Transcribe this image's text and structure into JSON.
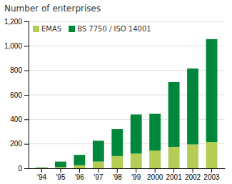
{
  "chart_data": {
    "type": "bar",
    "stacked": true,
    "title": "Number of enterprises",
    "categories": [
      "'94",
      "'95",
      "'96",
      "'97",
      "'98",
      "'99",
      "2000",
      "2001",
      "2002",
      "2003"
    ],
    "series": [
      {
        "name": "EMAS",
        "color": "#b5cc55",
        "values": [
          5,
          10,
          25,
          55,
          100,
          120,
          145,
          175,
          195,
          215
        ]
      },
      {
        "name": "BS 7750 / ISO 14001",
        "color": "#00873c",
        "values": [
          3,
          45,
          85,
          170,
          220,
          320,
          300,
          530,
          620,
          840
        ]
      }
    ],
    "ylim": [
      0,
      1200
    ],
    "yticks": [
      0,
      200,
      400,
      600,
      800,
      {
        "value": 1000,
        "label": "1,000"
      },
      {
        "value": 1200,
        "label": "1,200"
      }
    ],
    "grid": true,
    "legend": "upper left"
  }
}
